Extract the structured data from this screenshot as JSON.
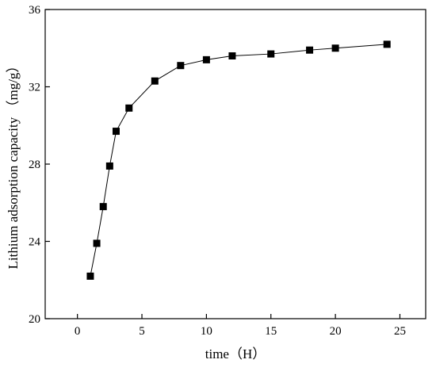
{
  "chart_data": {
    "type": "line",
    "xlabel": "time（H）",
    "ylabel": "Lithium adsorption capacity （mg/g）",
    "xlim": [
      -2.5,
      27
    ],
    "ylim": [
      20,
      36
    ],
    "x_ticks": [
      0,
      5,
      10,
      15,
      20,
      25
    ],
    "y_ticks": [
      20,
      24,
      28,
      32,
      36
    ],
    "grid": false,
    "marker": "square",
    "colors": {
      "line": "#000000",
      "marker": "#000000",
      "axis": "#000000"
    },
    "series": [
      {
        "x": [
          1,
          1.5,
          2,
          2.5,
          3,
          4,
          6,
          8,
          10,
          12,
          15,
          18,
          20,
          24
        ],
        "values": [
          22.2,
          23.9,
          25.8,
          27.9,
          29.7,
          30.9,
          32.3,
          33.1,
          33.4,
          33.6,
          33.7,
          33.9,
          34.0,
          34.2
        ]
      }
    ]
  }
}
